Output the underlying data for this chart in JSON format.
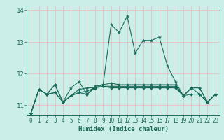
{
  "xlabel": "Humidex (Indice chaleur)",
  "background_color": "#cceee8",
  "grid_color": "#e8b8b8",
  "line_color": "#1a6b5a",
  "xlim": [
    -0.5,
    23.5
  ],
  "ylim": [
    10.7,
    14.15
  ],
  "yticks": [
    11,
    12,
    13,
    14
  ],
  "xticks": [
    0,
    1,
    2,
    3,
    4,
    5,
    6,
    7,
    8,
    9,
    10,
    11,
    12,
    13,
    14,
    15,
    16,
    17,
    18,
    19,
    20,
    21,
    22,
    23
  ],
  "series1_y": [
    10.75,
    11.5,
    11.35,
    11.65,
    11.1,
    11.55,
    11.75,
    11.35,
    11.6,
    11.65,
    13.55,
    13.3,
    13.82,
    12.65,
    13.05,
    13.05,
    13.15,
    12.25,
    11.75,
    11.3,
    11.55,
    11.55,
    11.1,
    11.35
  ],
  "series2_y": [
    10.75,
    11.5,
    11.35,
    11.65,
    11.1,
    11.3,
    11.5,
    11.55,
    11.55,
    11.65,
    11.7,
    11.65,
    11.65,
    11.65,
    11.65,
    11.65,
    11.65,
    11.65,
    11.65,
    11.3,
    11.55,
    11.55,
    11.1,
    11.35
  ],
  "series3_y": [
    10.75,
    11.5,
    11.35,
    11.4,
    11.1,
    11.3,
    11.4,
    11.45,
    11.55,
    11.6,
    11.6,
    11.6,
    11.6,
    11.6,
    11.6,
    11.6,
    11.6,
    11.6,
    11.6,
    11.3,
    11.55,
    11.35,
    11.1,
    11.35
  ],
  "series4_y": [
    10.75,
    11.5,
    11.35,
    11.4,
    11.1,
    11.3,
    11.4,
    11.35,
    11.55,
    11.6,
    11.55,
    11.55,
    11.55,
    11.55,
    11.55,
    11.55,
    11.55,
    11.55,
    11.55,
    11.3,
    11.35,
    11.35,
    11.1,
    11.35
  ],
  "xlabel_fontsize": 6.5,
  "tick_fontsize": 5.5,
  "ytick_fontsize": 6.5,
  "linewidth": 0.8,
  "marker_size": 2.5
}
